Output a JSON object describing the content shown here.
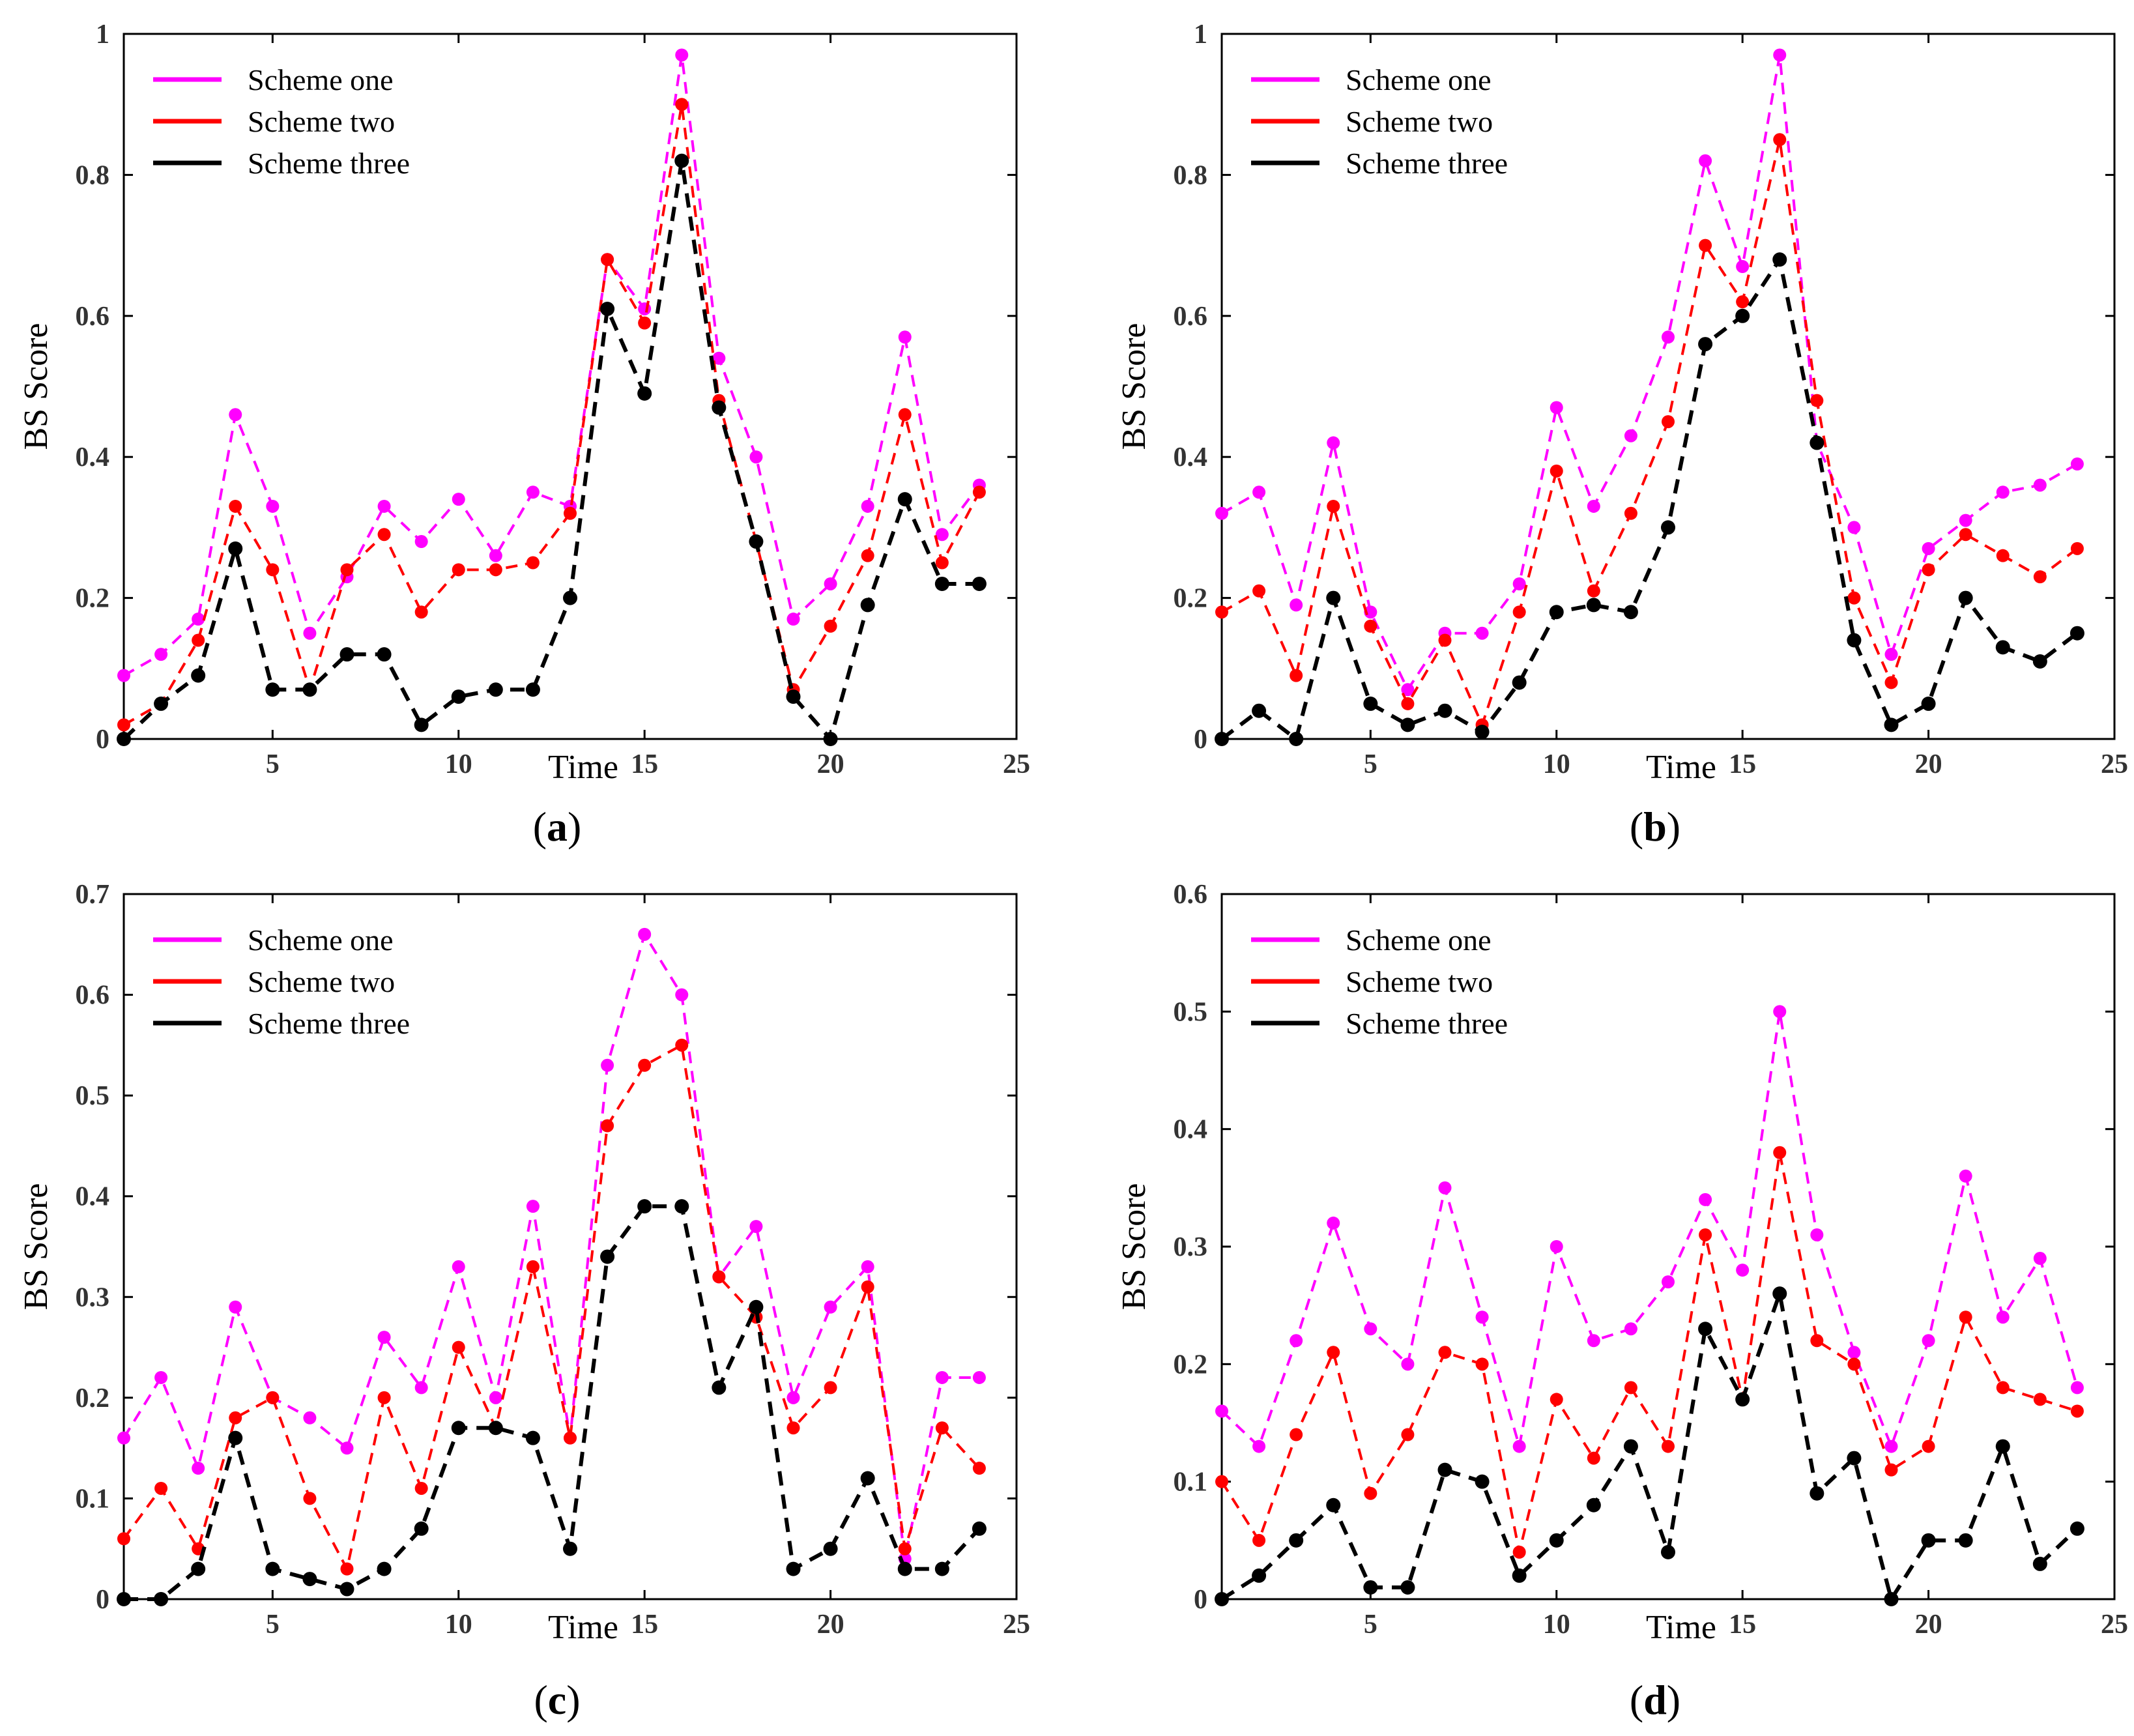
{
  "chart_data": [
    {
      "type": "line",
      "panel_label": "a",
      "xlabel": "Time",
      "ylabel": "BS Score",
      "xlim": [
        1,
        25
      ],
      "ylim": [
        0,
        1
      ],
      "xticks": [
        5,
        10,
        15,
        20,
        25
      ],
      "yticks": [
        0,
        0.2,
        0.4,
        0.6,
        0.8,
        1
      ],
      "ytick_labels": [
        "0",
        "0.2",
        "0.4",
        "0.6",
        "0.8",
        "1"
      ],
      "legend_position": "top-left",
      "x": [
        1,
        2,
        3,
        4,
        5,
        6,
        7,
        8,
        9,
        10,
        11,
        12,
        13,
        14,
        15,
        16,
        17,
        18,
        19,
        20,
        21,
        22,
        23,
        24
      ],
      "series": [
        {
          "name": "Scheme one",
          "color": "#ff00ff",
          "values": [
            0.09,
            0.12,
            0.17,
            0.46,
            0.33,
            0.15,
            0.23,
            0.33,
            0.28,
            0.34,
            0.26,
            0.35,
            0.33,
            0.68,
            0.61,
            0.97,
            0.54,
            0.4,
            0.17,
            0.22,
            0.33,
            0.57,
            0.29,
            0.36
          ]
        },
        {
          "name": "Scheme two",
          "color": "#ff0000",
          "values": [
            0.02,
            0.05,
            0.14,
            0.33,
            0.24,
            0.07,
            0.24,
            0.29,
            0.18,
            0.24,
            0.24,
            0.25,
            0.32,
            0.68,
            0.59,
            0.9,
            0.48,
            0.28,
            0.07,
            0.16,
            0.26,
            0.46,
            0.25,
            0.35
          ]
        },
        {
          "name": "Scheme three",
          "color": "#000000",
          "values": [
            0.0,
            0.05,
            0.09,
            0.27,
            0.07,
            0.07,
            0.12,
            0.12,
            0.02,
            0.06,
            0.07,
            0.07,
            0.2,
            0.61,
            0.49,
            0.82,
            0.47,
            0.28,
            0.06,
            0.0,
            0.19,
            0.34,
            0.22,
            0.22
          ]
        }
      ]
    },
    {
      "type": "line",
      "panel_label": "b",
      "xlabel": "Time",
      "ylabel": "BS Score",
      "xlim": [
        1,
        25
      ],
      "ylim": [
        0,
        1
      ],
      "xticks": [
        5,
        10,
        15,
        20,
        25
      ],
      "yticks": [
        0,
        0.2,
        0.4,
        0.6,
        0.8,
        1
      ],
      "ytick_labels": [
        "0",
        "0.2",
        "0.4",
        "0.6",
        "0.8",
        "1"
      ],
      "legend_position": "top-left",
      "x": [
        1,
        2,
        3,
        4,
        5,
        6,
        7,
        8,
        9,
        10,
        11,
        12,
        13,
        14,
        15,
        16,
        17,
        18,
        19,
        20,
        21,
        22,
        23,
        24
      ],
      "series": [
        {
          "name": "Scheme one",
          "color": "#ff00ff",
          "values": [
            0.32,
            0.35,
            0.19,
            0.42,
            0.18,
            0.07,
            0.15,
            0.15,
            0.22,
            0.47,
            0.33,
            0.43,
            0.57,
            0.82,
            0.67,
            0.97,
            0.42,
            0.3,
            0.12,
            0.27,
            0.31,
            0.35,
            0.36,
            0.39
          ]
        },
        {
          "name": "Scheme two",
          "color": "#ff0000",
          "values": [
            0.18,
            0.21,
            0.09,
            0.33,
            0.16,
            0.05,
            0.14,
            0.02,
            0.18,
            0.38,
            0.21,
            0.32,
            0.45,
            0.7,
            0.62,
            0.85,
            0.48,
            0.2,
            0.08,
            0.24,
            0.29,
            0.26,
            0.23,
            0.27
          ]
        },
        {
          "name": "Scheme three",
          "color": "#000000",
          "values": [
            0.0,
            0.04,
            0.0,
            0.2,
            0.05,
            0.02,
            0.04,
            0.01,
            0.08,
            0.18,
            0.19,
            0.18,
            0.3,
            0.56,
            0.6,
            0.68,
            0.42,
            0.14,
            0.02,
            0.05,
            0.2,
            0.13,
            0.11,
            0.15
          ]
        }
      ]
    },
    {
      "type": "line",
      "panel_label": "c",
      "xlabel": "Time",
      "ylabel": "BS Score",
      "xlim": [
        1,
        25
      ],
      "ylim": [
        0,
        0.7
      ],
      "xticks": [
        5,
        10,
        15,
        20,
        25
      ],
      "yticks": [
        0,
        0.1,
        0.2,
        0.3,
        0.4,
        0.5,
        0.6,
        0.7
      ],
      "ytick_labels": [
        "0",
        "0.1",
        "0.2",
        "0.3",
        "0.4",
        "0.5",
        "0.6",
        "0.7"
      ],
      "legend_position": "top-left",
      "x": [
        1,
        2,
        3,
        4,
        5,
        6,
        7,
        8,
        9,
        10,
        11,
        12,
        13,
        14,
        15,
        16,
        17,
        18,
        19,
        20,
        21,
        22,
        23,
        24
      ],
      "series": [
        {
          "name": "Scheme one",
          "color": "#ff00ff",
          "values": [
            0.16,
            0.22,
            0.13,
            0.29,
            0.2,
            0.18,
            0.15,
            0.26,
            0.21,
            0.33,
            0.2,
            0.39,
            0.16,
            0.53,
            0.66,
            0.6,
            0.32,
            0.37,
            0.2,
            0.29,
            0.33,
            0.04,
            0.22,
            0.22
          ]
        },
        {
          "name": "Scheme two",
          "color": "#ff0000",
          "values": [
            0.06,
            0.11,
            0.05,
            0.18,
            0.2,
            0.1,
            0.03,
            0.2,
            0.11,
            0.25,
            0.17,
            0.33,
            0.16,
            0.47,
            0.53,
            0.55,
            0.32,
            0.28,
            0.17,
            0.21,
            0.31,
            0.05,
            0.17,
            0.13
          ]
        },
        {
          "name": "Scheme three",
          "color": "#000000",
          "values": [
            0.0,
            0.0,
            0.03,
            0.16,
            0.03,
            0.02,
            0.01,
            0.03,
            0.07,
            0.17,
            0.17,
            0.16,
            0.05,
            0.34,
            0.39,
            0.39,
            0.21,
            0.29,
            0.03,
            0.05,
            0.12,
            0.03,
            0.03,
            0.07
          ]
        }
      ]
    },
    {
      "type": "line",
      "panel_label": "d",
      "xlabel": "Time",
      "ylabel": "BS Score",
      "xlim": [
        1,
        25
      ],
      "ylim": [
        0,
        0.6
      ],
      "xticks": [
        5,
        10,
        15,
        20,
        25
      ],
      "yticks": [
        0,
        0.1,
        0.2,
        0.3,
        0.4,
        0.5,
        0.6
      ],
      "ytick_labels": [
        "0",
        "0.1",
        "0.2",
        "0.3",
        "0.4",
        "0.5",
        "0.6"
      ],
      "legend_position": "top-left",
      "x": [
        1,
        2,
        3,
        4,
        5,
        6,
        7,
        8,
        9,
        10,
        11,
        12,
        13,
        14,
        15,
        16,
        17,
        18,
        19,
        20,
        21,
        22,
        23,
        24
      ],
      "series": [
        {
          "name": "Scheme one",
          "color": "#ff00ff",
          "values": [
            0.16,
            0.13,
            0.22,
            0.32,
            0.23,
            0.2,
            0.35,
            0.24,
            0.13,
            0.3,
            0.22,
            0.23,
            0.27,
            0.34,
            0.28,
            0.5,
            0.31,
            0.21,
            0.13,
            0.22,
            0.36,
            0.24,
            0.29,
            0.18
          ]
        },
        {
          "name": "Scheme two",
          "color": "#ff0000",
          "values": [
            0.1,
            0.05,
            0.14,
            0.21,
            0.09,
            0.14,
            0.21,
            0.2,
            0.04,
            0.17,
            0.12,
            0.18,
            0.13,
            0.31,
            0.17,
            0.38,
            0.22,
            0.2,
            0.11,
            0.13,
            0.24,
            0.18,
            0.17,
            0.16
          ]
        },
        {
          "name": "Scheme three",
          "color": "#000000",
          "values": [
            0.0,
            0.02,
            0.05,
            0.08,
            0.01,
            0.01,
            0.11,
            0.1,
            0.02,
            0.05,
            0.08,
            0.13,
            0.04,
            0.23,
            0.17,
            0.26,
            0.09,
            0.12,
            0.0,
            0.05,
            0.05,
            0.13,
            0.03,
            0.06
          ]
        }
      ]
    }
  ]
}
